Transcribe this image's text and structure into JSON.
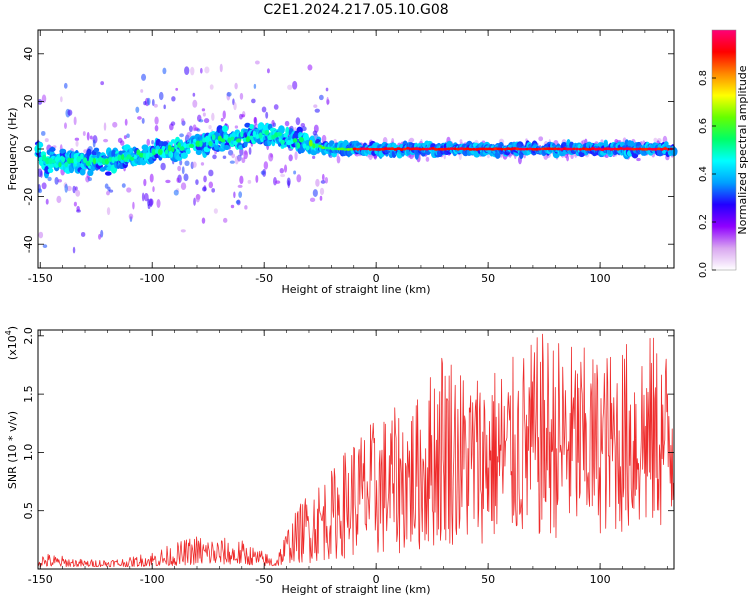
{
  "title": "C2E1.2024.217.05.10.G08",
  "colors": {
    "series": "#ee2b2b",
    "axis": "#000000",
    "background": "#ffffff"
  },
  "chart_data": [
    {
      "type": "heatmap",
      "name": "spectrogram",
      "xlabel": "Height of straight line (km)",
      "ylabel": "Frequency (Hz)",
      "xlim": [
        -151,
        133
      ],
      "ylim": [
        -50,
        50
      ],
      "xticks": [
        -150,
        -100,
        -50,
        0,
        50,
        100
      ],
      "xtick_labels": [
        "-150",
        "-100",
        "-50",
        "0",
        "50",
        "100"
      ],
      "yticks": [
        -40,
        -20,
        0,
        20,
        40
      ],
      "ytick_labels": [
        "-40",
        "-20",
        "0",
        "20",
        "40"
      ],
      "center_frequency_trend": [
        {
          "height": -150,
          "freq": -5
        },
        {
          "height": -120,
          "freq": -5
        },
        {
          "height": -100,
          "freq": -2
        },
        {
          "height": -80,
          "freq": 2
        },
        {
          "height": -60,
          "freq": 5
        },
        {
          "height": -50,
          "freq": 6
        },
        {
          "height": -40,
          "freq": 4
        },
        {
          "height": -30,
          "freq": 2
        },
        {
          "height": -20,
          "freq": 0
        },
        {
          "height": 0,
          "freq": 0
        },
        {
          "height": 133,
          "freq": 0
        }
      ],
      "colorbar": {
        "label": "Normalized spectral amplitude",
        "range": [
          0,
          1
        ],
        "ticks": [
          0.0,
          0.2,
          0.4,
          0.6,
          0.8
        ],
        "tick_labels": [
          "0.0",
          "0.2",
          "0.4",
          "0.6",
          "0.8"
        ],
        "colormap": [
          "#ffffff",
          "#d9a6f0",
          "#8f00ff",
          "#2200ff",
          "#00a0ff",
          "#00ffff",
          "#00ff66",
          "#66ff00",
          "#ffff00",
          "#ff8800",
          "#ff0000",
          "#ff0077"
        ]
      }
    },
    {
      "type": "line",
      "name": "snr",
      "xlabel": "Height of straight line (km)",
      "ylabel": "SNR (10 * v/v)",
      "scale_label": "(x10",
      "scale_exponent": "4",
      "scale_close": ")",
      "xlim": [
        -151,
        133
      ],
      "ylim": [
        0,
        2.05
      ],
      "xticks": [
        -150,
        -100,
        -50,
        0,
        50,
        100
      ],
      "xtick_labels": [
        "-150",
        "-100",
        "-50",
        "0",
        "50",
        "100"
      ],
      "yticks": [
        0.5,
        1.0,
        1.5,
        2.0
      ],
      "ytick_labels": [
        "0.5",
        "1.0",
        "1.5",
        "2.0"
      ],
      "envelope": [
        {
          "height": -151,
          "min": 0.02,
          "max": 0.15
        },
        {
          "height": -130,
          "min": 0.02,
          "max": 0.08
        },
        {
          "height": -110,
          "min": 0.02,
          "max": 0.1
        },
        {
          "height": -90,
          "min": 0.03,
          "max": 0.22
        },
        {
          "height": -80,
          "min": 0.04,
          "max": 0.3
        },
        {
          "height": -60,
          "min": 0.04,
          "max": 0.25
        },
        {
          "height": -45,
          "min": 0.02,
          "max": 0.1
        },
        {
          "height": -40,
          "min": 0.05,
          "max": 0.35
        },
        {
          "height": -30,
          "min": 0.05,
          "max": 0.7
        },
        {
          "height": -20,
          "min": 0.08,
          "max": 0.85
        },
        {
          "height": -10,
          "min": 0.1,
          "max": 1.15
        },
        {
          "height": 0,
          "min": 0.1,
          "max": 1.3
        },
        {
          "height": 20,
          "min": 0.15,
          "max": 1.5
        },
        {
          "height": 30,
          "min": 0.2,
          "max": 2.0
        },
        {
          "height": 40,
          "min": 0.2,
          "max": 1.7
        },
        {
          "height": 60,
          "min": 0.25,
          "max": 1.8
        },
        {
          "height": 75,
          "min": 0.25,
          "max": 2.05
        },
        {
          "height": 100,
          "min": 0.3,
          "max": 1.85
        },
        {
          "height": 120,
          "min": 0.3,
          "max": 2.05
        },
        {
          "height": 133,
          "min": 0.35,
          "max": 1.9
        }
      ]
    }
  ]
}
